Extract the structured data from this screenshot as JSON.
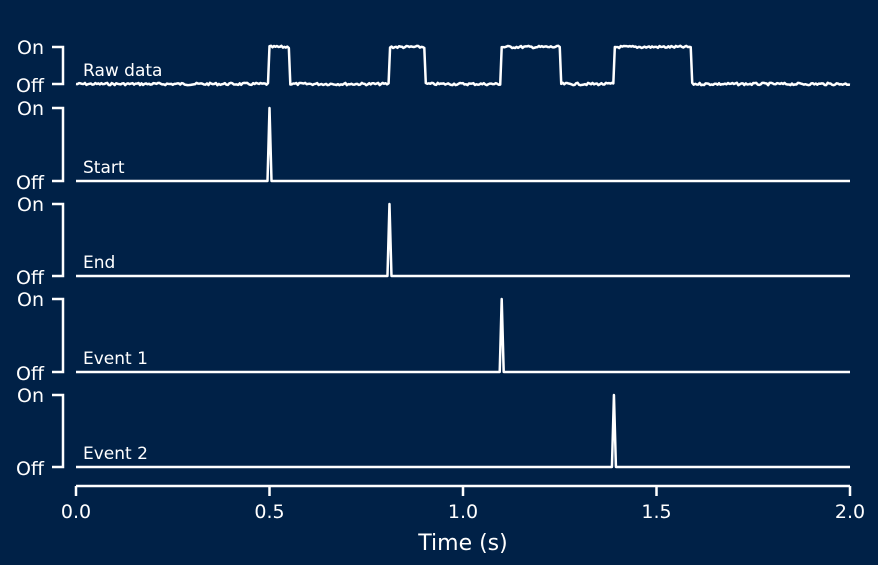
{
  "chart_data": {
    "type": "line",
    "xlabel": "Time (s)",
    "xlim": [
      0.0,
      2.0
    ],
    "x_ticks": [
      0.0,
      0.5,
      1.0,
      1.5,
      2.0
    ],
    "x_tick_labels": [
      "0.0",
      "0.5",
      "1.0",
      "1.5",
      "2.0"
    ],
    "y_tick_labels": [
      "Off",
      "On"
    ],
    "grid": false,
    "legend": "none",
    "colors": {
      "background": "#002147",
      "line": "#ffffff"
    },
    "series": [
      {
        "name": "Raw data",
        "kind": "pulses",
        "noisy": true,
        "pulses": [
          [
            0.5,
            0.55
          ],
          [
            0.81,
            0.9
          ],
          [
            1.1,
            1.25
          ],
          [
            1.39,
            1.59
          ]
        ]
      },
      {
        "name": "Start",
        "kind": "spike",
        "at": 0.5
      },
      {
        "name": "End",
        "kind": "spike",
        "at": 0.81
      },
      {
        "name": "Event 1",
        "kind": "spike",
        "at": 1.1
      },
      {
        "name": "Event 2",
        "kind": "spike",
        "at": 1.39
      }
    ]
  }
}
